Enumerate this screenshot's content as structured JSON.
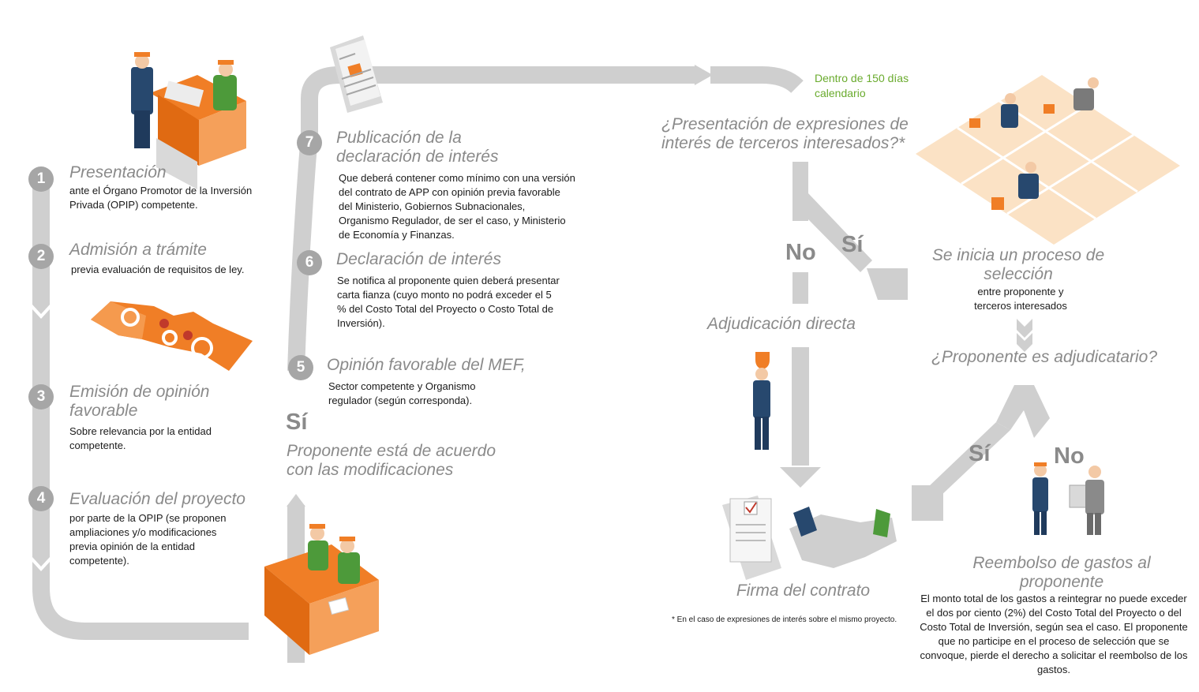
{
  "steps": [
    {
      "number": "1",
      "title": "Presentación",
      "text": "ante el Órgano Promotor de la Inversión Privada (OPIP) competente."
    },
    {
      "number": "2",
      "title": "Admisión a trámite",
      "text": "previa evaluación de requisitos de ley."
    },
    {
      "number": "3",
      "title": "Emisión de opinión favorable",
      "text": "Sobre relevancia por la entidad competente."
    },
    {
      "number": "4",
      "title": "Evaluación del proyecto",
      "text": "por parte de la OPIP (se proponen ampliaciones y/o modificaciones previa opinión de la entidad competente)."
    },
    {
      "number": "5",
      "title": "Opinión favorable del MEF,",
      "text": "Sector competente y Organismo regulador (según corresponda)."
    },
    {
      "number": "6",
      "title": "Declaración de interés",
      "text": "Se notifica al proponente quien deberá presentar carta fianza (cuyo monto no podrá exceder el 5 % del Costo Total del Proyecto o Costo Total de Inversión)."
    },
    {
      "number": "7",
      "title": "Publicación de la declaración de interés",
      "text": "Que deberá contener como mínimo con una versión del contrato de APP con opinión previa favorable del Ministerio, Gobiernos Subnacionales, Organismo Regulador, de ser el caso, y Ministerio de Economía y Finanzas."
    }
  ],
  "agreement": {
    "yes": "Sí",
    "text": "Proponente está de acuerdo con las modificaciones"
  },
  "deadline": "Dentro de 150 días calendario",
  "question1": "¿Presentación de expresiones de interés de terceros interesados?*",
  "no1": "No",
  "yes1": "Sí",
  "direct": "Adjudicación directa",
  "selection": {
    "title": "Se inicia un proceso de selección",
    "text": "entre proponente y terceros interesados"
  },
  "question2": "¿Proponente es adjudicatario?",
  "yes2": "Sí",
  "no2": "No",
  "contract": "Firma del contrato",
  "refund": {
    "title": "Reembolso de gastos al proponente",
    "text": "El monto total de los gastos a reintegrar no puede exceder el dos por ciento (2%) del Costo Total del Proyecto o del Costo Total de Inversión, según sea el caso. El proponente que no participe en el proceso de selección que se convoque, pierde el derecho a solicitar el reembolso de los gastos."
  },
  "footnote": "* En el caso de expresiones de interés sobre el mismo proyecto.",
  "colors": {
    "orange": "#f07e26",
    "grey": "#a6a6a6",
    "light_grey": "#cfcfcf",
    "green": "#6aab2e",
    "peach": "#fbe2c5",
    "navy": "#27486e"
  }
}
